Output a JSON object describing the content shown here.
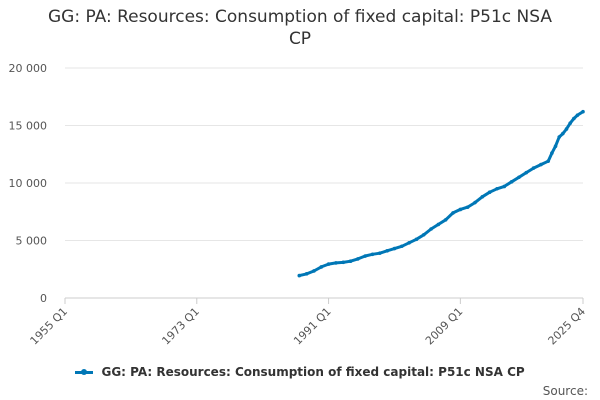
{
  "chart_data": {
    "type": "line",
    "title_lines": [
      "GG: PA: Resources: Consumption of fixed capital: P51c NSA",
      "CP"
    ],
    "xlabel": "",
    "ylabel": "",
    "x_tick_labels": [
      "1955 Q1",
      "1973 Q1",
      "1991 Q1",
      "2009 Q1",
      "2025 Q4"
    ],
    "x_tick_years": [
      1955.0,
      1973.0,
      1991.0,
      2009.0,
      2025.75
    ],
    "xlim": [
      1955.0,
      2025.75
    ],
    "y_tick_labels": [
      "0",
      "5 000",
      "10 000",
      "15 000",
      "20 000"
    ],
    "y_tick_values": [
      0,
      5000,
      10000,
      15000,
      20000
    ],
    "ylim": [
      0,
      20000
    ],
    "grid": "horizontal",
    "legend_placement": "bottom-center",
    "series": [
      {
        "name": "GG: PA: Resources: Consumption of fixed capital: P51c NSA CP",
        "color": "#0077b6",
        "x": [
          1987.0,
          1988.0,
          1989.0,
          1990.0,
          1991.0,
          1992.0,
          1993.0,
          1994.0,
          1995.0,
          1996.0,
          1997.0,
          1998.0,
          1999.0,
          2000.0,
          2001.0,
          2002.0,
          2003.0,
          2004.0,
          2005.0,
          2006.0,
          2007.0,
          2008.0,
          2009.0,
          2010.0,
          2011.0,
          2012.0,
          2013.0,
          2014.0,
          2015.0,
          2016.0,
          2017.0,
          2018.0,
          2019.0,
          2020.0,
          2021.0,
          2021.5,
          2022.0,
          2022.5,
          2023.0,
          2023.5,
          2024.0,
          2024.5,
          2025.0,
          2025.75
        ],
        "y": [
          1950,
          2100,
          2350,
          2700,
          2950,
          3050,
          3100,
          3200,
          3400,
          3650,
          3800,
          3900,
          4100,
          4300,
          4500,
          4800,
          5100,
          5500,
          6000,
          6400,
          6800,
          7400,
          7700,
          7900,
          8300,
          8800,
          9200,
          9500,
          9700,
          10100,
          10500,
          10900,
          11300,
          11600,
          11900,
          12600,
          13200,
          14000,
          14300,
          14700,
          15200,
          15600,
          15900,
          16200
        ]
      }
    ]
  },
  "source_label": "Source:"
}
